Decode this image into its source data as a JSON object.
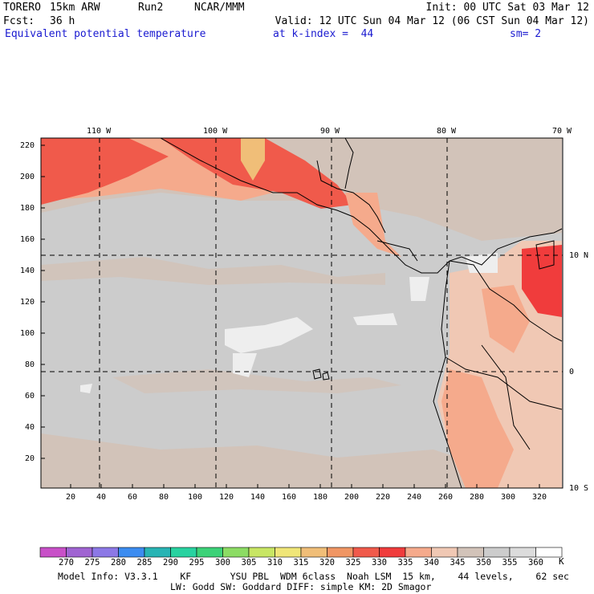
{
  "header": {
    "model": "TORERO",
    "resolution": "15km ARW",
    "run": "Run2",
    "org": "NCAR/MMM",
    "init": "Init: 00 UTC Sat 03 Mar 12",
    "fcst_label": "Fcst:",
    "fcst_value": "36 h",
    "valid": "Valid: 12 UTC Sun 04 Mar 12 (06 CST Sun 04 Mar 12)",
    "field": "Equivalent potential temperature",
    "level": "at k-index =  44",
    "smooth": "sm= 2"
  },
  "axes": {
    "top_ticks": [
      "110 W",
      "100 W",
      "90 W",
      "80 W",
      "70 W"
    ],
    "right_ticks": [
      "10 N",
      "0",
      "10 S"
    ],
    "y_ticks": [
      "220",
      "200",
      "180",
      "160",
      "140",
      "120",
      "100",
      "80",
      "60",
      "40",
      "20"
    ],
    "x_ticks": [
      "20",
      "40",
      "60",
      "80",
      "100",
      "120",
      "140",
      "160",
      "180",
      "200",
      "220",
      "240",
      "260",
      "280",
      "300",
      "320"
    ]
  },
  "colorbar": {
    "labels": [
      "270",
      "275",
      "280",
      "285",
      "290",
      "295",
      "300",
      "305",
      "310",
      "315",
      "320",
      "325",
      "330",
      "335",
      "340",
      "345",
      "350",
      "355",
      "360"
    ],
    "unit": "K",
    "colors": [
      "#c850c8",
      "#a064d2",
      "#8c78e6",
      "#3c8cf0",
      "#28b4b4",
      "#28d2a0",
      "#3cd278",
      "#8cdc64",
      "#c8e664",
      "#f0e678",
      "#f0be78",
      "#f09664",
      "#f05a4b",
      "#f03c3c",
      "#f5aa8c",
      "#f0c8b4",
      "#d2c3b9",
      "#cccccc",
      "#dcdcdc",
      "#ffffff"
    ]
  },
  "footer": {
    "line1": "Model Info: V3.3.1    KF       YSU PBL  WDM 6class  Noah LSM  15 km,    44 levels,    62 sec",
    "line2": "LW: Godd SW: Goddard DIFF: simple KM: 2D Smagor"
  }
}
